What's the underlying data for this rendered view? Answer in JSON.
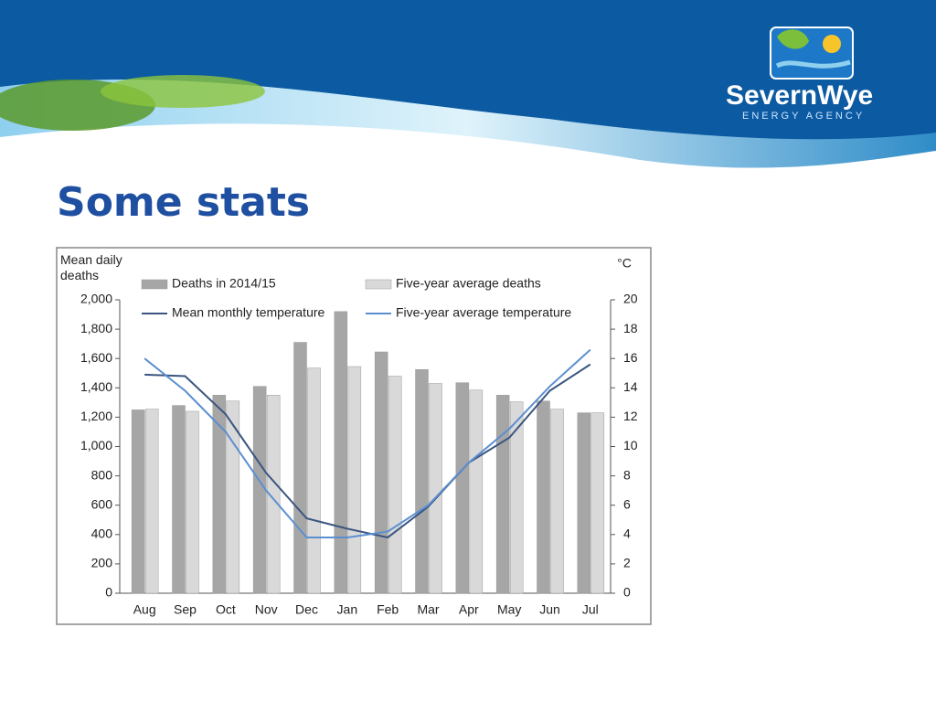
{
  "slide": {
    "title": "Some stats",
    "logo": {
      "name": "SevernWye",
      "tagline": "ENERGY AGENCY"
    }
  },
  "chart_data": {
    "type": "bar-line",
    "y_label": "Mean daily deaths",
    "y2_label": "°C",
    "categories": [
      "Aug",
      "Sep",
      "Oct",
      "Nov",
      "Dec",
      "Jan",
      "Feb",
      "Mar",
      "Apr",
      "May",
      "Jun",
      "Jul"
    ],
    "series": [
      {
        "name": "Deaths in 2014/15",
        "type": "bar",
        "color": "#a6a6a6",
        "values": [
          1250,
          1280,
          1350,
          1410,
          1710,
          1920,
          1645,
          1525,
          1435,
          1350,
          1310,
          1230
        ]
      },
      {
        "name": "Five-year average deaths",
        "type": "bar",
        "color": "#d9d9d9",
        "values": [
          1255,
          1240,
          1310,
          1350,
          1535,
          1545,
          1480,
          1430,
          1385,
          1305,
          1255,
          1230
        ]
      },
      {
        "name": "Mean monthly temperature",
        "type": "line",
        "axis": "y2",
        "color": "#3a5580",
        "values": [
          14.9,
          14.8,
          12.2,
          8.2,
          5.1,
          4.4,
          3.8,
          5.9,
          8.9,
          10.6,
          13.8,
          15.6
        ]
      },
      {
        "name": "Five-year average temperature",
        "type": "line",
        "axis": "y2",
        "color": "#5b8fd0",
        "values": [
          16.0,
          13.8,
          11.0,
          7.0,
          3.8,
          3.8,
          4.2,
          6.0,
          8.9,
          11.2,
          14.1,
          16.6
        ]
      }
    ],
    "ylim": [
      0,
      2000
    ],
    "yticks": [
      0,
      200,
      400,
      600,
      800,
      {
        "value": 1000,
        "label": "1,000"
      },
      {
        "value": 1200,
        "label": "1,200"
      },
      {
        "value": 1400,
        "label": "1,400"
      },
      {
        "value": 1600,
        "label": "1,600"
      },
      {
        "value": 1800,
        "label": "1,800"
      },
      {
        "value": 2000,
        "label": "2,000"
      }
    ],
    "y2lim": [
      0,
      20
    ],
    "y2ticks": [
      0,
      2,
      4,
      6,
      8,
      10,
      12,
      14,
      16,
      18,
      20
    ]
  }
}
